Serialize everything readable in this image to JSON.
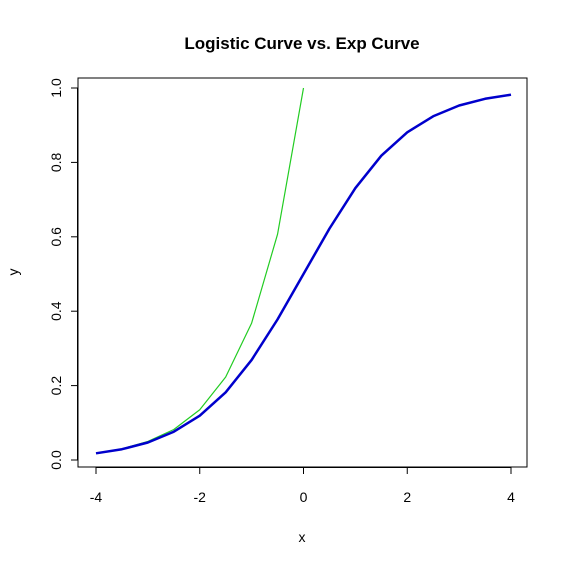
{
  "chart_data": {
    "type": "line",
    "title": "Logistic Curve vs. Exp Curve",
    "xlabel": "x",
    "ylabel": "y",
    "xlim": [
      -4,
      4
    ],
    "ylim": [
      0,
      1
    ],
    "x_ticks": [
      -4,
      -2,
      0,
      2,
      4
    ],
    "y_ticks": [
      0.0,
      0.2,
      0.4,
      0.6,
      0.8,
      1.0
    ],
    "x_tick_labels": [
      "-4",
      "-2",
      "0",
      "2",
      "4"
    ],
    "y_tick_labels": [
      "0.0",
      "0.2",
      "0.4",
      "0.6",
      "0.8",
      "1.0"
    ],
    "grid": false,
    "series": [
      {
        "color": "#0000cc",
        "x": [
          -4,
          -3.5,
          -3,
          -2.5,
          -2,
          -1.5,
          -1,
          -0.5,
          0,
          0.5,
          1,
          1.5,
          2,
          2.5,
          3,
          3.5,
          4
        ],
        "y": [
          0.018,
          0.029,
          0.047,
          0.076,
          0.119,
          0.182,
          0.269,
          0.378,
          0.5,
          0.622,
          0.731,
          0.818,
          0.881,
          0.924,
          0.953,
          0.971,
          0.982
        ]
      },
      {
        "color": "#22cc22",
        "x": [
          -4,
          -3.5,
          -3,
          -2.5,
          -2,
          -1.5,
          -1,
          -0.5,
          0
        ],
        "y": [
          0.018,
          0.03,
          0.05,
          0.082,
          0.135,
          0.223,
          0.368,
          0.607,
          1.0
        ]
      }
    ]
  }
}
